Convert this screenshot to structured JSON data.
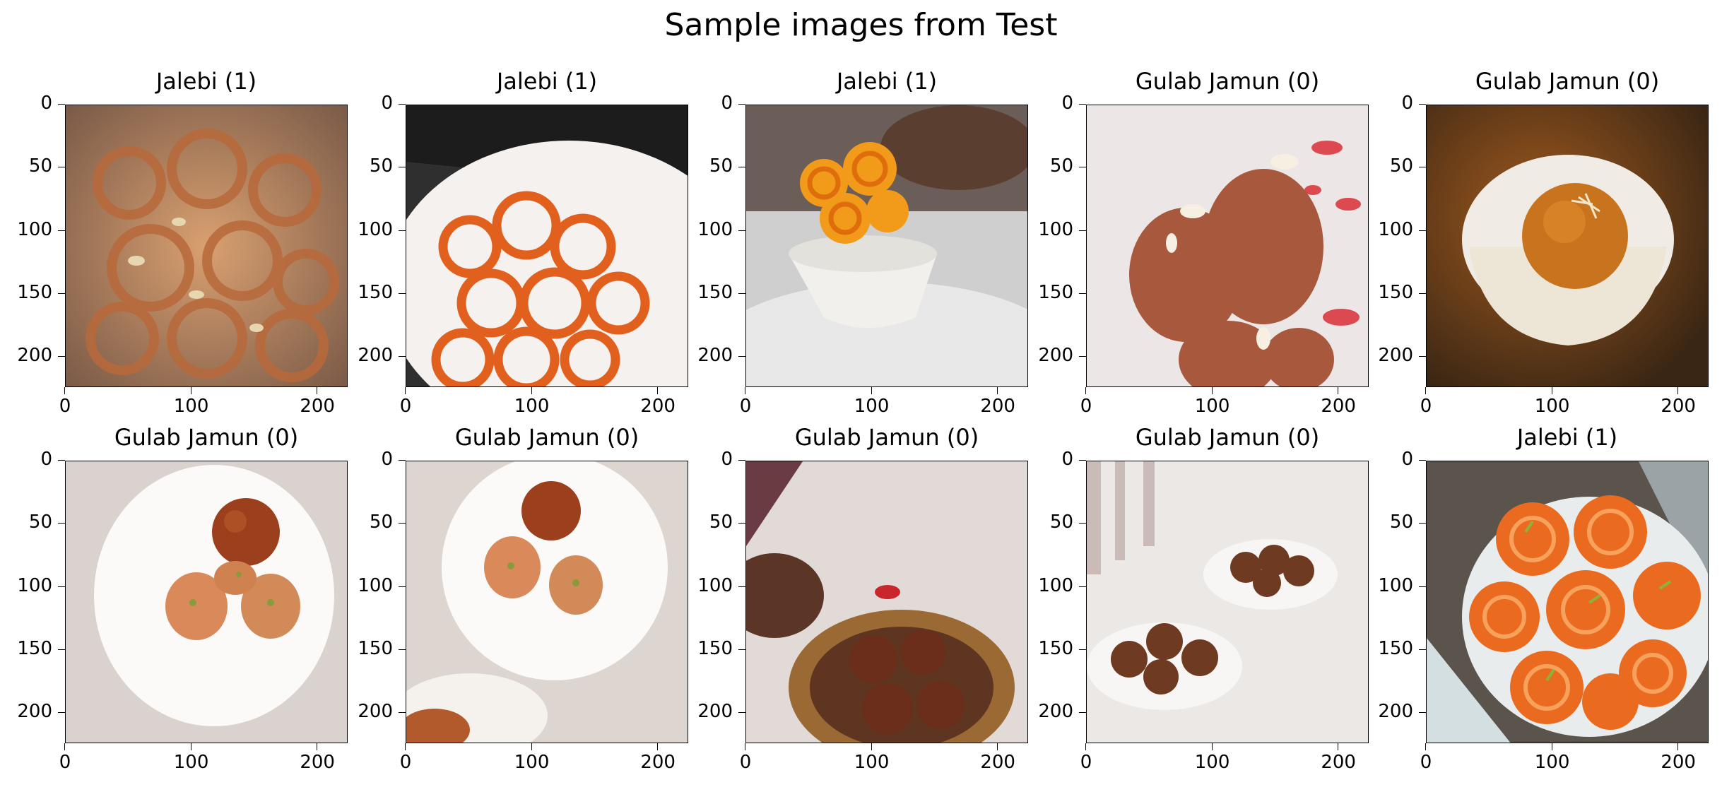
{
  "figure": {
    "title": "Sample images from Test"
  },
  "axis": {
    "ticks": [
      "0",
      "50",
      "100",
      "150",
      "200"
    ],
    "xticks": [
      "0",
      "100",
      "200"
    ]
  },
  "panels": [
    {
      "title": "Jalebi (1)",
      "subject": "jalebi-closeup"
    },
    {
      "title": "Jalebi (1)",
      "subject": "jalebi-plate"
    },
    {
      "title": "Jalebi (1)",
      "subject": "jalebi-cup"
    },
    {
      "title": "Gulab Jamun (0)",
      "subject": "gulab-jamun-pair"
    },
    {
      "title": "Gulab Jamun (0)",
      "subject": "gulab-jamun-cup"
    },
    {
      "title": "Gulab Jamun (0)",
      "subject": "gulab-jamun-plate"
    },
    {
      "title": "Gulab Jamun (0)",
      "subject": "gulab-jamun-plate-2"
    },
    {
      "title": "Gulab Jamun (0)",
      "subject": "gulab-jamun-bowl"
    },
    {
      "title": "Gulab Jamun (0)",
      "subject": "gulab-jamun-two-bowls"
    },
    {
      "title": "Jalebi (1)",
      "subject": "jalebi-spiral"
    }
  ]
}
